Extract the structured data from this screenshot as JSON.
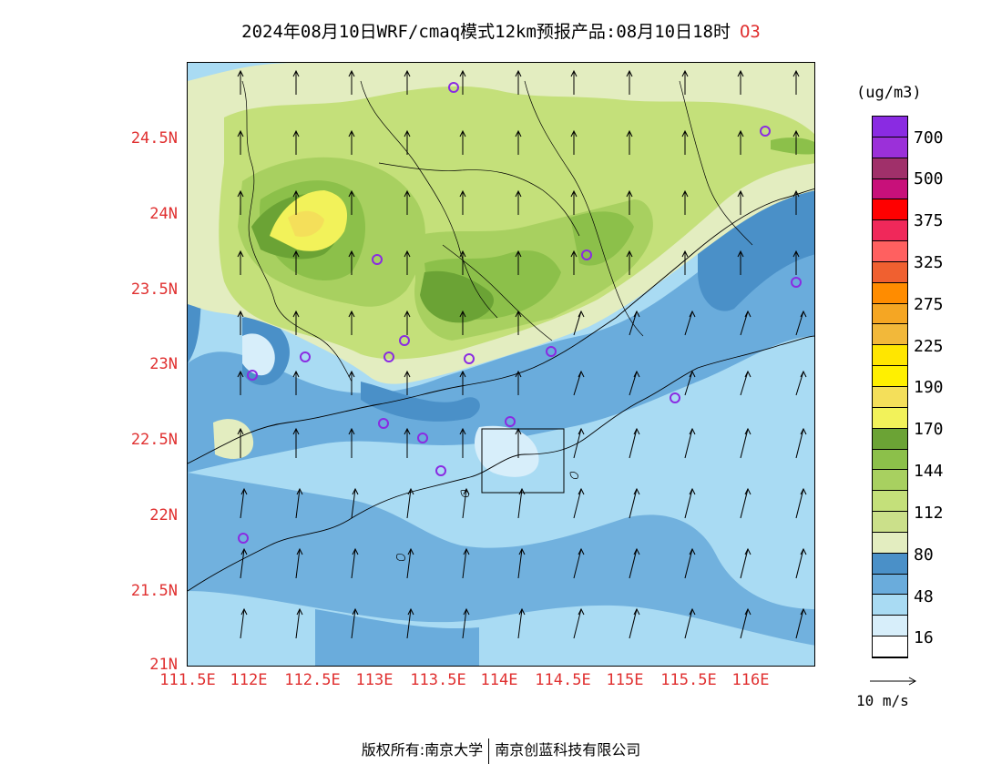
{
  "title": {
    "main": "2024年08月10日WRF/cmaq模式12km预报产品:08月10日18时",
    "species": "O3"
  },
  "y_axis": {
    "labels": [
      "24.5N",
      "24N",
      "23.5N",
      "23N",
      "22.5N",
      "22N",
      "21.5N",
      "21N"
    ]
  },
  "x_axis": {
    "labels": [
      "111.5E",
      "112E",
      "112.5E",
      "113E",
      "113.5E",
      "114E",
      "114.5E",
      "115E",
      "115.5E",
      "116E"
    ]
  },
  "legend": {
    "unit": "(ug/m3)",
    "labels": [
      "700",
      "500",
      "375",
      "325",
      "275",
      "225",
      "190",
      "170",
      "144",
      "112",
      "80",
      "48",
      "16"
    ],
    "colors": [
      "#8a2be2",
      "#9b30d9",
      "#a0306a",
      "#c8107a",
      "#ff0000",
      "#f0285a",
      "#ff6060",
      "#f06030",
      "#ff8c00",
      "#f5a623",
      "#f2b83a",
      "#ffe600",
      "#fff000",
      "#f4df5a",
      "#f2f25a",
      "#6ba335",
      "#8cc04a",
      "#a8d060",
      "#c4e07a",
      "#cbe08a",
      "#e3edc0",
      "#4a90c8",
      "#6aacdc",
      "#a9dbf3",
      "#d7eefa",
      "#ffffff"
    ]
  },
  "wind_reference": "10 m/s",
  "footer": {
    "left": "版权所有:南京大学",
    "right": "南京创蓝科技有限公司"
  }
}
